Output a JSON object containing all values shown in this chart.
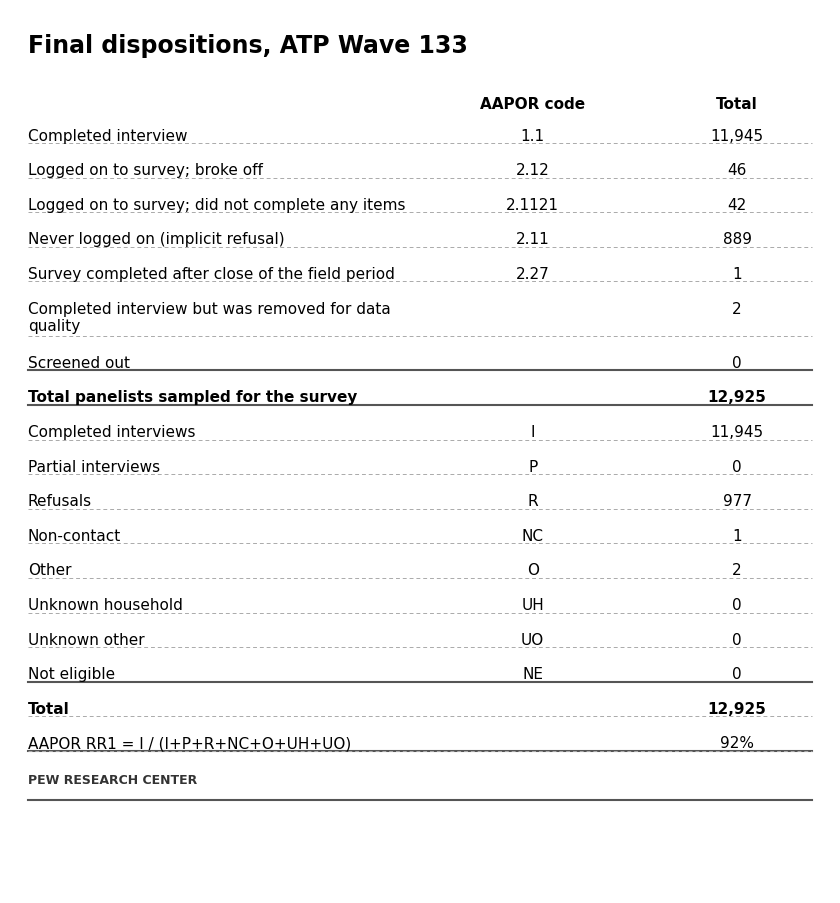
{
  "title": "Final dispositions, ATP Wave 133",
  "col_headers": [
    "",
    "AAPOR code",
    "Total"
  ],
  "rows": [
    {
      "label": "Completed interview",
      "code": "1.1",
      "total": "11,945",
      "bold": false,
      "two_line": false
    },
    {
      "label": "Logged on to survey; broke off",
      "code": "2.12",
      "total": "46",
      "bold": false,
      "two_line": false
    },
    {
      "label": "Logged on to survey; did not complete any items",
      "code": "2.1121",
      "total": "42",
      "bold": false,
      "two_line": false
    },
    {
      "label": "Never logged on (implicit refusal)",
      "code": "2.11",
      "total": "889",
      "bold": false,
      "two_line": false
    },
    {
      "label": "Survey completed after close of the field period",
      "code": "2.27",
      "total": "1",
      "bold": false,
      "two_line": false
    },
    {
      "label": "Completed interview but was removed for data\nquality",
      "code": "",
      "total": "2",
      "bold": false,
      "two_line": true
    },
    {
      "label": "Screened out",
      "code": "",
      "total": "0",
      "bold": false,
      "two_line": false
    },
    {
      "label": "Total panelists sampled for the survey",
      "code": "",
      "total": "12,925",
      "bold": true,
      "two_line": false,
      "thick_line_before": true,
      "thick_line_after": true
    },
    {
      "label": "Completed interviews",
      "code": "I",
      "total": "11,945",
      "bold": false,
      "two_line": false
    },
    {
      "label": "Partial interviews",
      "code": "P",
      "total": "0",
      "bold": false,
      "two_line": false
    },
    {
      "label": "Refusals",
      "code": "R",
      "total": "977",
      "bold": false,
      "two_line": false
    },
    {
      "label": "Non-contact",
      "code": "NC",
      "total": "1",
      "bold": false,
      "two_line": false
    },
    {
      "label": "Other",
      "code": "O",
      "total": "2",
      "bold": false,
      "two_line": false
    },
    {
      "label": "Unknown household",
      "code": "UH",
      "total": "0",
      "bold": false,
      "two_line": false
    },
    {
      "label": "Unknown other",
      "code": "UO",
      "total": "0",
      "bold": false,
      "two_line": false
    },
    {
      "label": "Not eligible",
      "code": "NE",
      "total": "0",
      "bold": false,
      "two_line": false
    },
    {
      "label": "Total",
      "code": "",
      "total": "12,925",
      "bold": true,
      "two_line": false,
      "thick_line_before": true,
      "thick_line_after": false
    },
    {
      "label": "AAPOR RR1 = I / (I+P+R+NC+O+UH+UO)",
      "code": "",
      "total": "92%",
      "bold": false,
      "two_line": false,
      "thick_line_after": true
    }
  ],
  "footer": "PEW RESEARCH CENTER",
  "bg_color": "#ffffff",
  "text_color": "#000000",
  "title_color": "#000000",
  "footer_color": "#333333",
  "header_color": "#000000",
  "line_color": "#aaaaaa",
  "thick_line_color": "#555555"
}
